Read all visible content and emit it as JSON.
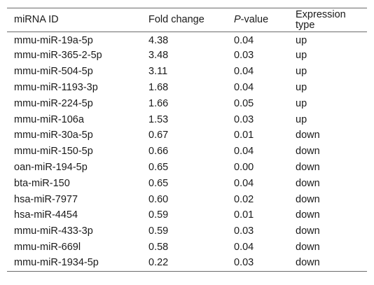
{
  "table": {
    "headers": {
      "mirna_id": "miRNA ID",
      "fold_change": "Fold change",
      "pvalue_italic": "P",
      "pvalue_rest": "-value",
      "expression_type": "Expression type"
    },
    "rows": [
      {
        "id": "mmu-miR-19a-5p",
        "fold": "4.38",
        "p": "0.04",
        "type": "up"
      },
      {
        "id": "mmu-miR-365-2-5p",
        "fold": "3.48",
        "p": "0.03",
        "type": "up"
      },
      {
        "id": "mmu-miR-504-5p",
        "fold": "3.11",
        "p": "0.04",
        "type": "up"
      },
      {
        "id": "mmu-miR-1193-3p",
        "fold": "1.68",
        "p": "0.04",
        "type": "up"
      },
      {
        "id": "mmu-miR-224-5p",
        "fold": "1.66",
        "p": "0.05",
        "type": "up"
      },
      {
        "id": "mmu-miR-106a",
        "fold": "1.53",
        "p": "0.03",
        "type": "up"
      },
      {
        "id": "mmu-miR-30a-5p",
        "fold": "0.67",
        "p": "0.01",
        "type": "down"
      },
      {
        "id": "mmu-miR-150-5p",
        "fold": "0.66",
        "p": "0.04",
        "type": "down"
      },
      {
        "id": "oan-miR-194-5p",
        "fold": "0.65",
        "p": "0.00",
        "type": "down"
      },
      {
        "id": "bta-miR-150",
        "fold": "0.65",
        "p": "0.04",
        "type": "down"
      },
      {
        "id": "hsa-miR-7977",
        "fold": "0.60",
        "p": "0.02",
        "type": "down"
      },
      {
        "id": "hsa-miR-4454",
        "fold": "0.59",
        "p": "0.01",
        "type": "down"
      },
      {
        "id": "mmu-miR-433-3p",
        "fold": "0.59",
        "p": "0.03",
        "type": "down"
      },
      {
        "id": "mmu-miR-669l",
        "fold": "0.58",
        "p": "0.04",
        "type": "down"
      },
      {
        "id": "mmu-miR-1934-5p",
        "fold": "0.22",
        "p": "0.03",
        "type": "down"
      }
    ]
  }
}
